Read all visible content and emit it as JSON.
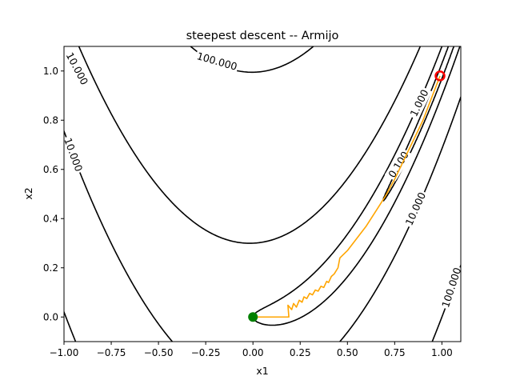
{
  "chart_data": {
    "type": "contour",
    "title": "steepest descent -- Armijo",
    "xlabel": "x1",
    "ylabel": "x2",
    "xlim": [
      -1.0,
      1.1
    ],
    "ylim": [
      -0.1,
      1.1
    ],
    "xticks": [
      -1.0,
      -0.75,
      -0.5,
      -0.25,
      0.0,
      0.25,
      0.5,
      0.75,
      1.0
    ],
    "xtick_labels": [
      "−1.00",
      "−0.75",
      "−0.50",
      "−0.25",
      "0.00",
      "0.25",
      "0.50",
      "0.75",
      "1.00"
    ],
    "yticks": [
      0.0,
      0.2,
      0.4,
      0.6,
      0.8,
      1.0
    ],
    "ytick_labels": [
      "0.0",
      "0.2",
      "0.4",
      "0.6",
      "0.8",
      "1.0"
    ],
    "function": "rosenbrock",
    "contour_levels": [
      0.1,
      1.0,
      10.0,
      100.0
    ],
    "contour_color": "#000000",
    "contour_labels": [
      {
        "text": "100.000",
        "x": -0.19,
        "y": 1.04,
        "angle": 16
      },
      {
        "text": "10.000",
        "x": -0.93,
        "y": 1.01,
        "angle": 62
      },
      {
        "text": "10.000",
        "x": -0.95,
        "y": 0.66,
        "angle": 70
      },
      {
        "text": "1.000",
        "x": 0.88,
        "y": 0.87,
        "angle": -64
      },
      {
        "text": "0.100",
        "x": 0.77,
        "y": 0.62,
        "angle": -58
      },
      {
        "text": "10.000",
        "x": 0.86,
        "y": 0.44,
        "angle": -66
      },
      {
        "text": "100.000",
        "x": 1.05,
        "y": 0.12,
        "angle": -72
      }
    ],
    "path": {
      "color": "#ffa500",
      "points": [
        [
          0.0,
          0.0
        ],
        [
          0.19,
          0.0
        ],
        [
          0.185,
          0.048
        ],
        [
          0.205,
          0.03
        ],
        [
          0.215,
          0.055
        ],
        [
          0.23,
          0.04
        ],
        [
          0.245,
          0.068
        ],
        [
          0.26,
          0.06
        ],
        [
          0.27,
          0.082
        ],
        [
          0.285,
          0.075
        ],
        [
          0.3,
          0.096
        ],
        [
          0.315,
          0.09
        ],
        [
          0.33,
          0.11
        ],
        [
          0.345,
          0.105
        ],
        [
          0.36,
          0.125
        ],
        [
          0.375,
          0.12
        ],
        [
          0.39,
          0.145
        ],
        [
          0.4,
          0.14
        ],
        [
          0.415,
          0.165
        ],
        [
          0.43,
          0.175
        ],
        [
          0.45,
          0.2
        ],
        [
          0.46,
          0.24
        ],
        [
          0.5,
          0.27
        ],
        [
          0.55,
          0.32
        ],
        [
          0.6,
          0.37
        ],
        [
          0.65,
          0.43
        ],
        [
          0.7,
          0.49
        ],
        [
          0.75,
          0.56
        ],
        [
          0.8,
          0.64
        ],
        [
          0.85,
          0.72
        ],
        [
          0.9,
          0.8
        ],
        [
          0.95,
          0.9
        ],
        [
          0.99,
          0.98
        ]
      ]
    },
    "start_point": {
      "x": 0.0,
      "y": 0.0,
      "color": "#008000"
    },
    "end_point": {
      "x": 0.99,
      "y": 0.98,
      "color": "#ff0000"
    }
  }
}
